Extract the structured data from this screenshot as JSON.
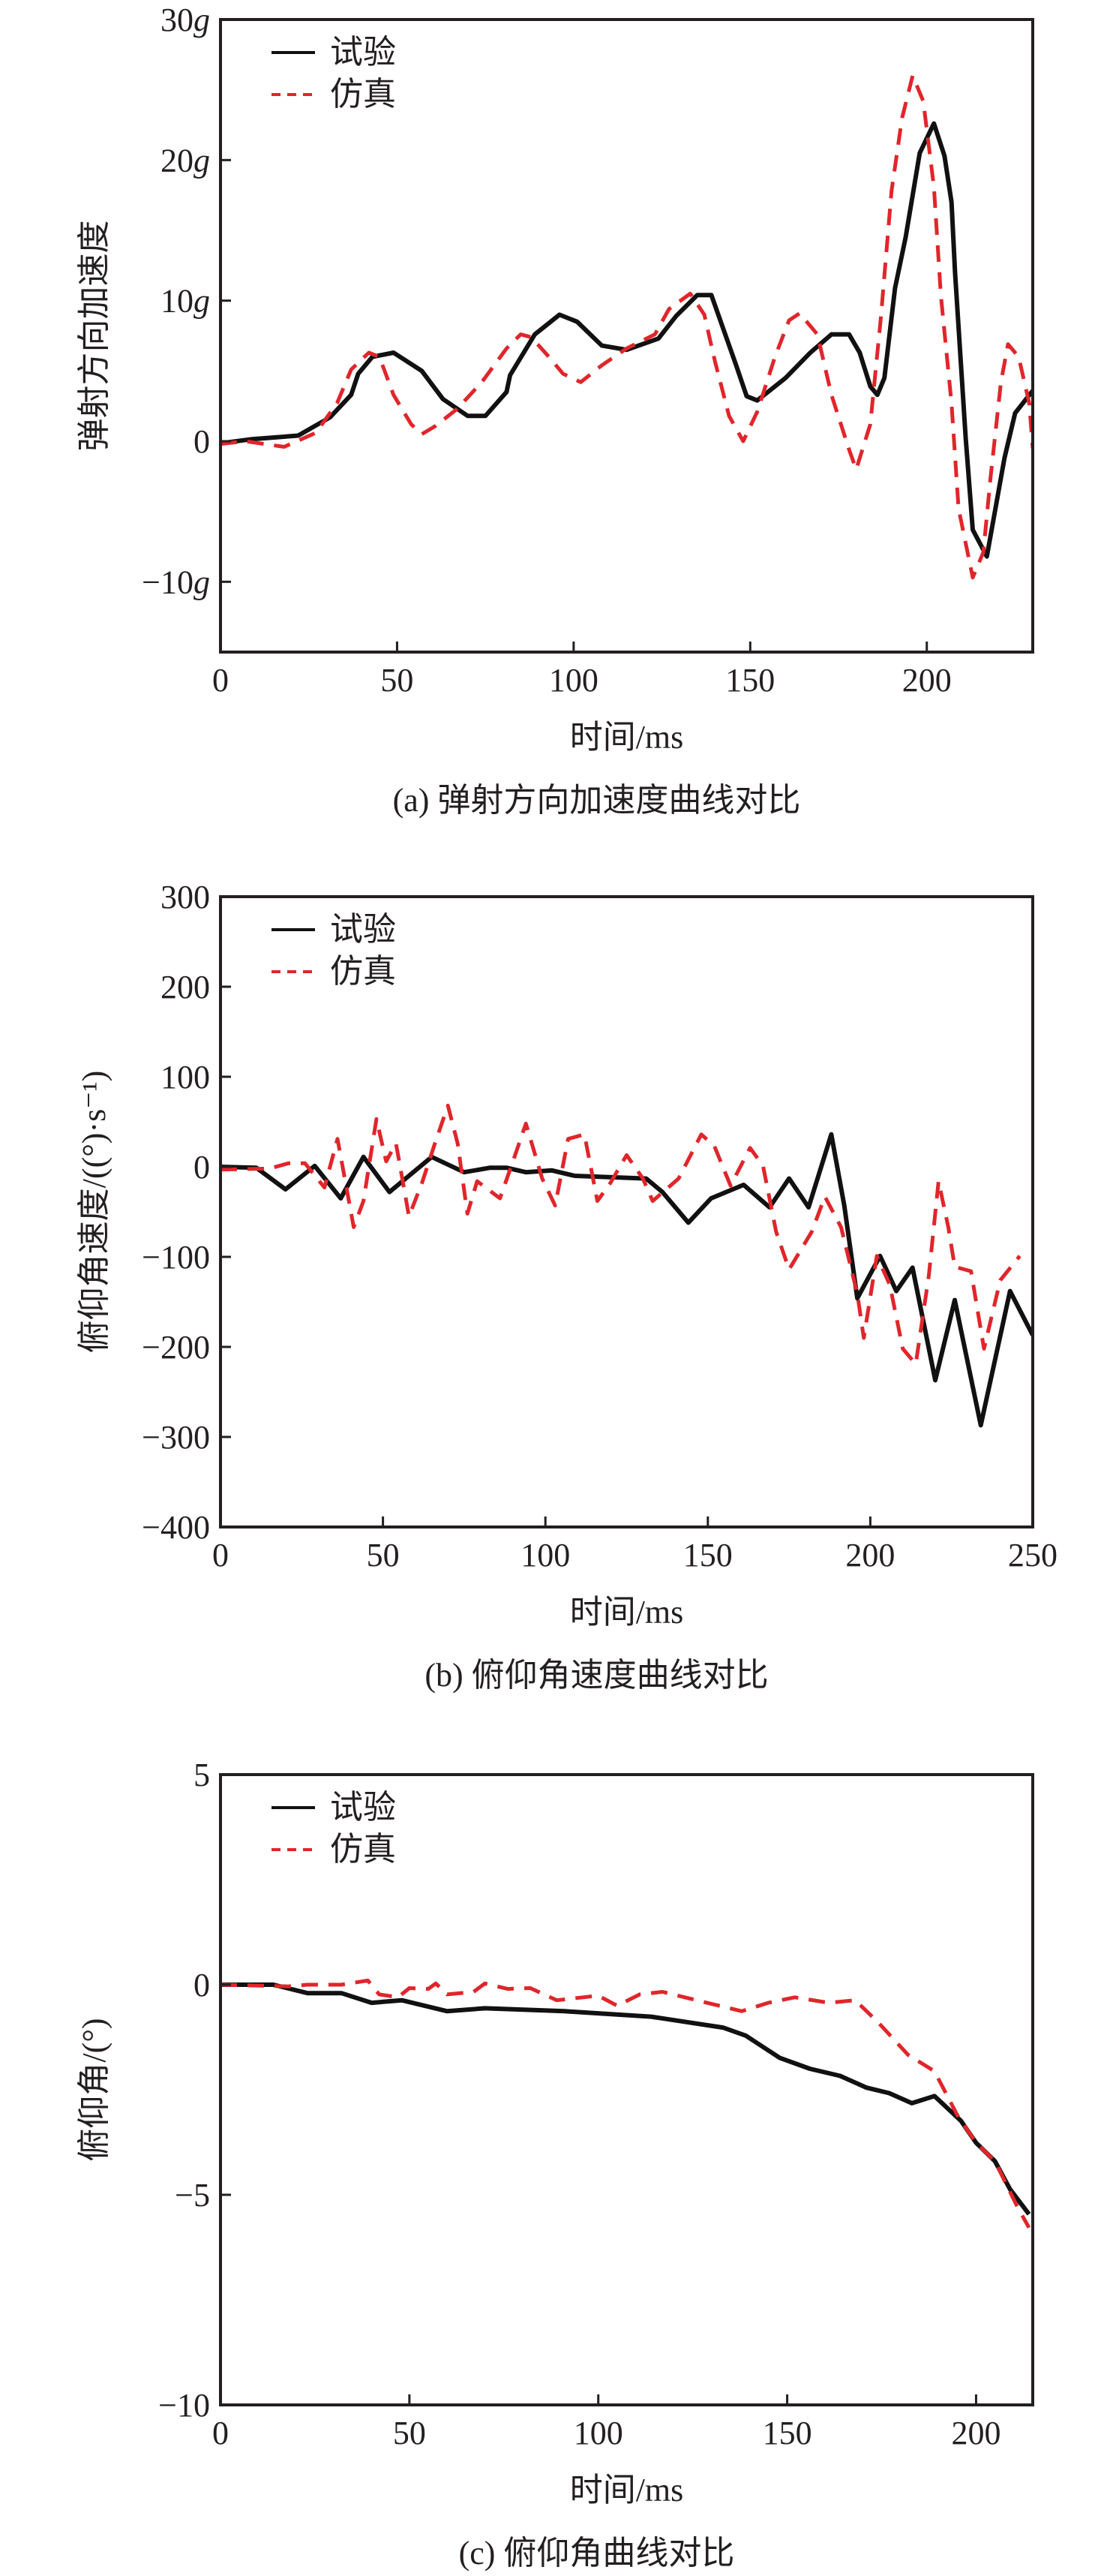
{
  "colors": {
    "experiment": "#111111",
    "simulation": "#e0262b",
    "axis": "#231f20"
  },
  "chart_data": [
    {
      "type": "line",
      "title": "(a) 弹射方向加速度曲线对比",
      "xlabel": "时间/ms",
      "ylabel": "弹射方向加速度",
      "xlim": [
        0,
        230
      ],
      "ylim": [
        -15,
        30
      ],
      "xticks": [
        0,
        50,
        100,
        150,
        200
      ],
      "xtick_labels": [
        "0",
        "50",
        "100",
        "150",
        "200"
      ],
      "yticks": [
        -10,
        0,
        10,
        20,
        30
      ],
      "ytick_labels": [
        "−10g",
        "0",
        "10g",
        "20g",
        "30g"
      ],
      "legend": {
        "position": "top-left",
        "entries": [
          "试验",
          "仿真"
        ]
      },
      "series": [
        {
          "name": "试验",
          "style": "solid",
          "x": [
            0,
            9,
            22,
            31,
            37,
            39,
            43,
            49,
            57,
            63,
            70,
            75,
            81,
            82,
            89,
            96,
            101,
            108,
            115,
            124,
            129,
            135,
            139,
            146,
            149,
            152,
            160,
            167,
            173,
            178,
            181,
            184,
            186,
            188,
            191,
            194,
            198,
            202,
            205,
            207,
            208,
            211,
            213,
            217,
            222,
            225,
            230
          ],
          "y": [
            -0.15,
            0.15,
            0.4,
            1.7,
            3.3,
            4.8,
            6,
            6.3,
            5,
            3,
            1.8,
            1.8,
            3.5,
            4.7,
            7.6,
            9,
            8.5,
            6.8,
            6.5,
            7.3,
            8.9,
            10.4,
            10.4,
            5.4,
            3.2,
            2.9,
            4.5,
            6.3,
            7.6,
            7.6,
            6.3,
            3.9,
            3.3,
            4.5,
            10.9,
            14.5,
            20.5,
            22.6,
            20.3,
            17,
            12,
            0.3,
            -6.3,
            -8.2,
            -1.2,
            2,
            3.6
          ]
        },
        {
          "name": "仿真",
          "style": "dashed",
          "x": [
            0,
            7,
            18,
            27,
            33,
            37,
            42,
            45,
            49,
            54,
            57,
            61,
            67,
            74,
            81,
            85,
            88,
            93,
            97,
            102,
            108,
            115,
            123,
            127,
            133,
            137,
            140,
            144,
            148,
            152,
            157,
            161,
            164,
            169,
            173,
            178,
            180,
            184,
            187,
            190,
            193,
            196,
            199,
            202,
            204,
            207,
            209,
            213,
            216,
            218,
            221,
            223,
            226,
            229,
            230
          ],
          "y": [
            -0.2,
            0,
            -0.4,
            0.6,
            2.7,
            5.1,
            6.3,
            6,
            3.3,
            1.2,
            0.5,
            1.1,
            2.3,
            4.2,
            6.6,
            7.6,
            7.4,
            6,
            4.8,
            4.2,
            5.4,
            6.6,
            7.6,
            9.4,
            10.5,
            9,
            5.7,
            1.8,
            0,
            2.1,
            6,
            8.6,
            9.1,
            7.6,
            3.3,
            -0.6,
            -2,
            1.2,
            8.8,
            17.8,
            23,
            26,
            24.2,
            18.1,
            10.3,
            2.7,
            -4.8,
            -9.7,
            -7.9,
            -2.7,
            4.2,
            6.9,
            6,
            2.7,
            -0.5
          ]
        }
      ]
    },
    {
      "type": "line",
      "title": "(b) 俯仰角速度曲线对比",
      "xlabel": "时间/ms",
      "ylabel": "俯仰角速度/((°)·s⁻¹)",
      "xlim": [
        0,
        250
      ],
      "ylim": [
        -400,
        300
      ],
      "xticks": [
        0,
        50,
        100,
        150,
        200,
        250
      ],
      "xtick_labels": [
        "0",
        "50",
        "100",
        "150",
        "200",
        "250"
      ],
      "yticks": [
        -400,
        -300,
        -200,
        -100,
        0,
        100,
        200,
        300
      ],
      "ytick_labels": [
        "−400",
        "−300",
        "−200",
        "−100",
        "0",
        "100",
        "200",
        "300"
      ],
      "legend": {
        "position": "top-left",
        "entries": [
          "试验",
          "仿真"
        ]
      },
      "series": [
        {
          "name": "试验",
          "style": "solid",
          "x": [
            0,
            11,
            20,
            29,
            37,
            44,
            52,
            65,
            75,
            83,
            88,
            94,
            102,
            109,
            131,
            136,
            144,
            151,
            161,
            169,
            175,
            181,
            188,
            192,
            196,
            203,
            208,
            213,
            220,
            226,
            234,
            243,
            250
          ],
          "y": [
            0,
            -1,
            -25,
            1,
            -35,
            11,
            -28,
            11,
            -6,
            -1,
            -1,
            -6,
            -4,
            -10,
            -13,
            -28,
            -62,
            -35,
            -20,
            -45,
            -13,
            -45,
            36,
            -43,
            -146,
            -99,
            -138,
            -112,
            -237,
            -148,
            -287,
            -138,
            -187
          ]
        },
        {
          "name": "仿真",
          "style": "dashed",
          "x": [
            0,
            15,
            21,
            26,
            32,
            36,
            41,
            44,
            48,
            51,
            54,
            55,
            58,
            62,
            66,
            70,
            73,
            76,
            79,
            86,
            90,
            94,
            99,
            103,
            107,
            112,
            116,
            120,
            125,
            130,
            133,
            141,
            148,
            152,
            157,
            163,
            167,
            171,
            175,
            182,
            186,
            191,
            196,
            198,
            202,
            206,
            210,
            214,
            218,
            221,
            224,
            226,
            231,
            235,
            240,
            246
          ],
          "y": [
            -3,
            -2,
            4,
            4,
            -23,
            31,
            -67,
            -38,
            53,
            6,
            26,
            6,
            -55,
            -18,
            26,
            68,
            26,
            -52,
            -16,
            -35,
            6,
            48,
            -13,
            -43,
            31,
            36,
            -38,
            -18,
            13,
            -13,
            -38,
            -13,
            36,
            23,
            -21,
            21,
            1,
            -72,
            -114,
            -72,
            -33,
            -67,
            -141,
            -190,
            -99,
            -131,
            -202,
            -219,
            -121,
            -16,
            -67,
            -111,
            -116,
            -202,
            -126,
            -99
          ]
        }
      ]
    },
    {
      "type": "line",
      "title": "(c) 俯仰角曲线对比",
      "xlabel": "时间/ms",
      "ylabel": "俯仰角/(°)",
      "xlim": [
        0,
        215
      ],
      "ylim": [
        -10,
        5
      ],
      "xticks": [
        0,
        50,
        100,
        150,
        200
      ],
      "xtick_labels": [
        "0",
        "50",
        "100",
        "150",
        "200"
      ],
      "yticks": [
        -10,
        -5,
        0,
        5
      ],
      "ytick_labels": [
        "−10",
        "−5",
        "0",
        "5"
      ],
      "legend": {
        "position": "top-left",
        "entries": [
          "试验",
          "仿真"
        ]
      },
      "series": [
        {
          "name": "试验",
          "style": "solid",
          "x": [
            0,
            14,
            23,
            32,
            40,
            48,
            60,
            70,
            91,
            114,
            133,
            139,
            148,
            156,
            164,
            171,
            177,
            183,
            189,
            196,
            200,
            205,
            209,
            214
          ],
          "y": [
            0,
            0,
            -0.2,
            -0.2,
            -0.43,
            -0.37,
            -0.63,
            -0.56,
            -0.63,
            -0.76,
            -1.02,
            -1.21,
            -1.74,
            -2.0,
            -2.17,
            -2.45,
            -2.58,
            -2.82,
            -2.65,
            -3.24,
            -3.76,
            -4.2,
            -4.87,
            -5.46
          ]
        },
        {
          "name": "仿真",
          "style": "dashed",
          "x": [
            0,
            18,
            23,
            32,
            39,
            42,
            47,
            50,
            55,
            57,
            60,
            67,
            70,
            76,
            82,
            89,
            100,
            105,
            111,
            117,
            126,
            138,
            145,
            152,
            161,
            168,
            174,
            182,
            189,
            195,
            200,
            205,
            211,
            214
          ],
          "y": [
            0,
            -0.04,
            0,
            0,
            0.1,
            -0.23,
            -0.3,
            -0.08,
            -0.1,
            0.03,
            -0.23,
            -0.17,
            0.03,
            -0.1,
            -0.08,
            -0.37,
            -0.26,
            -0.5,
            -0.23,
            -0.17,
            -0.37,
            -0.63,
            -0.43,
            -0.3,
            -0.43,
            -0.37,
            -0.89,
            -1.67,
            -2.06,
            -3.1,
            -3.76,
            -4.2,
            -5.3,
            -5.78
          ]
        }
      ]
    }
  ]
}
